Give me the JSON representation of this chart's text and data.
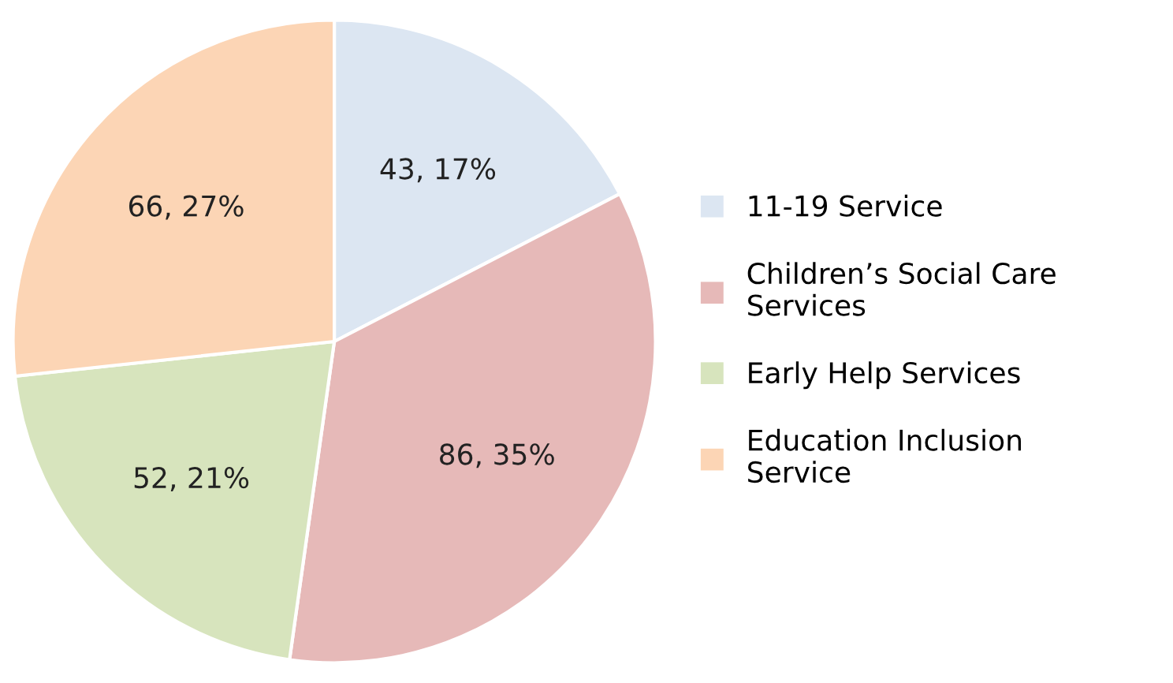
{
  "chart_data": {
    "type": "pie",
    "categories": [
      "11-19 Service",
      "Children’s Social Care\nServices",
      "Early Help Services",
      "Education Inclusion\nService"
    ],
    "values": [
      43,
      86,
      52,
      66
    ],
    "value_labels": [
      "43, 17%",
      "86, 35%",
      "52, 21%",
      "66, 27%"
    ],
    "colors": [
      "#dce6f2",
      "#e6b9b8",
      "#d7e4bd",
      "#fcd5b5"
    ],
    "legend": "right"
  }
}
